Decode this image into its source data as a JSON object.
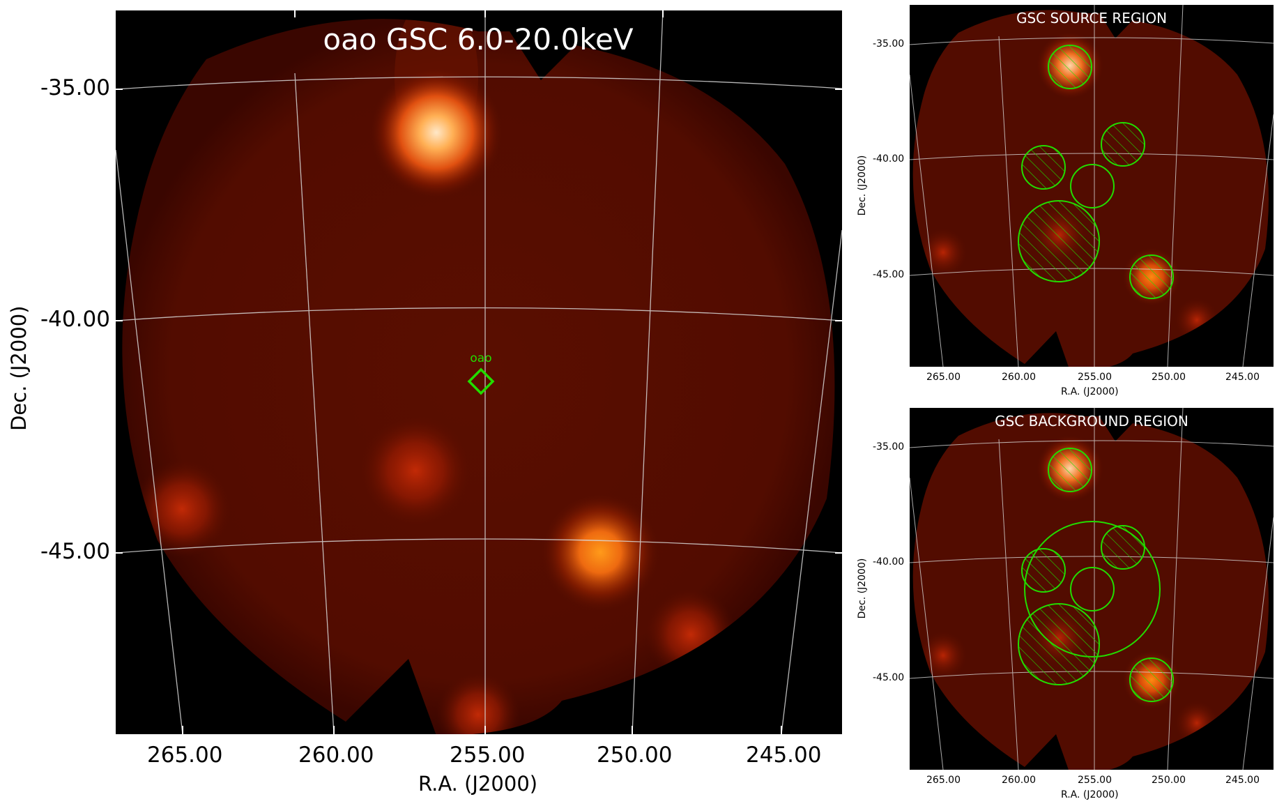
{
  "main": {
    "title": "oao GSC 6.0-20.0keV",
    "source_marker_label": "oao",
    "xlabel": "R.A. (J2000)",
    "ylabel": "Dec. (J2000)",
    "xticks": [
      "265.00",
      "260.00",
      "255.00",
      "250.00",
      "245.00"
    ],
    "yticks": [
      "-35.00",
      "-40.00",
      "-45.00"
    ]
  },
  "source_panel": {
    "title": "GSC SOURCE REGION",
    "xlabel": "R.A. (J2000)",
    "ylabel": "Dec. (J2000)",
    "xticks": [
      "265.00",
      "260.00",
      "255.00",
      "250.00",
      "245.00"
    ],
    "yticks": [
      "-35.00",
      "-40.00",
      "-45.00"
    ]
  },
  "background_panel": {
    "title": "GSC BACKGROUND REGION",
    "xlabel": "R.A. (J2000)",
    "ylabel": "Dec. (J2000)",
    "xticks": [
      "265.00",
      "260.00",
      "255.00",
      "250.00",
      "245.00"
    ],
    "yticks": [
      "-35.00",
      "-40.00",
      "-45.00"
    ]
  },
  "colors": {
    "background": "#000000",
    "sky_field": "#4a0a00",
    "region_outline": "#22dd00",
    "grid": "#d8d8d8",
    "bright_source": "#ff9a1a"
  }
}
